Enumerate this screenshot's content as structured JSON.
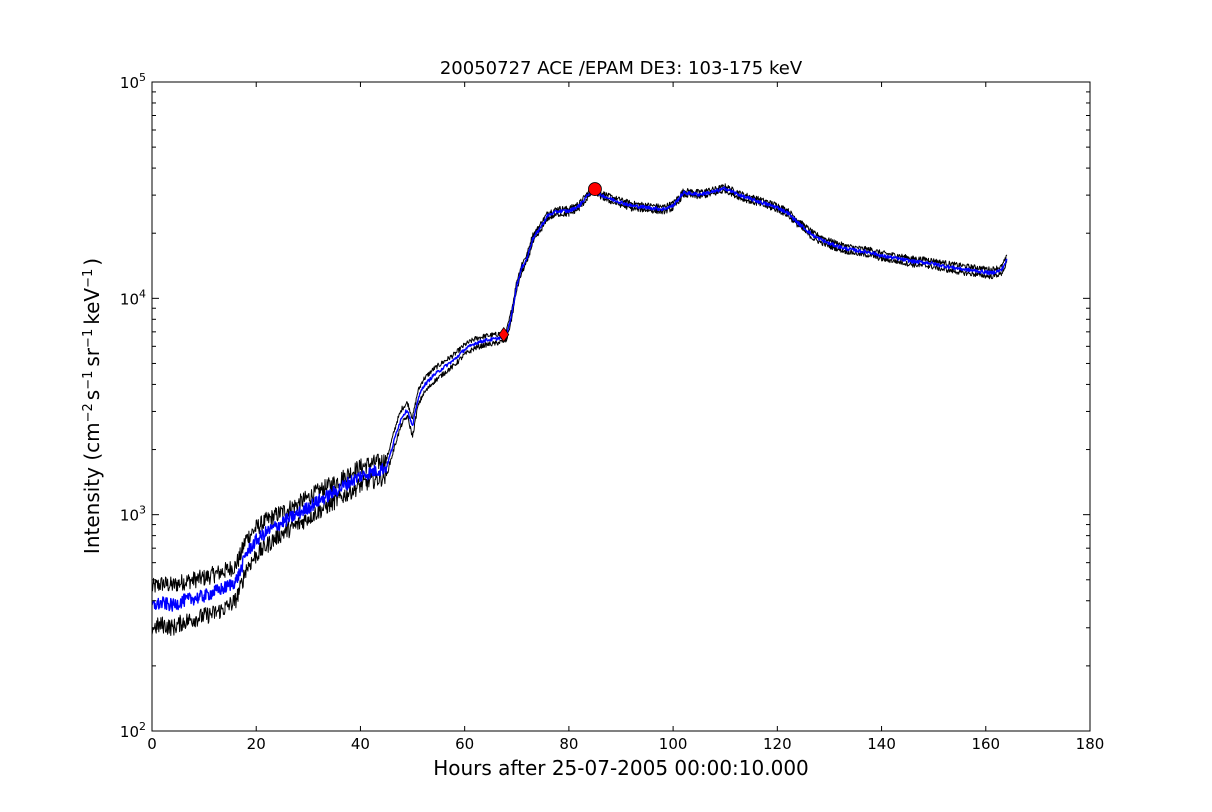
{
  "chart_data": {
    "type": "line",
    "title": "20050727 ACE /EPAM DE3: 103-175 keV",
    "xlabel": "Hours after 25-07-2005 00:00:10.000",
    "ylabel_main": "Intensity (cm",
    "ylabel_parts": [
      "Intensity (cm",
      "−2",
      "s",
      "−1",
      "sr",
      "−1",
      "keV",
      "−1",
      ")"
    ],
    "xlim": [
      0,
      180
    ],
    "ylim": [
      100,
      100000
    ],
    "yscale": "log",
    "xticks": [
      0,
      20,
      40,
      60,
      80,
      100,
      120,
      140,
      160,
      180
    ],
    "xtick_labels": [
      "0",
      "20",
      "40",
      "60",
      "80",
      "100",
      "120",
      "140",
      "160",
      "180"
    ],
    "yticks": [
      100,
      1000,
      10000,
      100000
    ],
    "ytick_labels": [
      {
        "base": "10",
        "exp": "2"
      },
      {
        "base": "10",
        "exp": "3"
      },
      {
        "base": "10",
        "exp": "4"
      },
      {
        "base": "10",
        "exp": "5"
      }
    ],
    "grid": false,
    "legend": "none",
    "series": [
      {
        "role": "upper-error-envelope",
        "color": "#000000",
        "x": [
          0,
          2,
          4,
          6,
          8,
          10,
          12,
          14,
          16,
          17,
          18,
          20,
          22,
          24,
          26,
          28,
          30,
          32,
          34,
          36,
          38,
          40,
          42,
          44,
          45,
          46,
          47,
          48,
          49,
          50,
          51,
          52,
          54,
          56,
          58,
          60,
          62,
          64,
          66,
          67,
          68,
          69,
          70,
          71,
          72,
          73,
          74,
          76,
          78,
          80,
          82,
          84,
          85,
          86,
          88,
          90,
          92,
          95,
          98,
          100,
          102,
          105,
          108,
          110,
          113,
          116,
          120,
          122,
          124,
          127,
          130,
          133,
          136,
          138,
          140,
          143,
          146,
          149,
          152,
          155,
          158,
          161,
          163,
          164
        ],
        "y": [
          460,
          480,
          470,
          490,
          500,
          510,
          530,
          550,
          580,
          650,
          770,
          870,
          940,
          1000,
          1060,
          1120,
          1200,
          1280,
          1360,
          1450,
          1560,
          1660,
          1720,
          1760,
          1800,
          2200,
          2700,
          3100,
          3300,
          2800,
          3700,
          4200,
          4700,
          5100,
          5500,
          6100,
          6500,
          6700,
          6800,
          6900,
          7000,
          8800,
          12000,
          14500,
          16000,
          19500,
          21000,
          25000,
          26000,
          26000,
          27500,
          31500,
          32500,
          31000,
          29500,
          28500,
          27500,
          27000,
          26500,
          27500,
          31500,
          31000,
          32000,
          33000,
          30500,
          29000,
          27000,
          25500,
          23000,
          20000,
          18500,
          17500,
          17000,
          16800,
          16200,
          15800,
          15300,
          15100,
          14600,
          14200,
          13900,
          13600,
          14000,
          15500
        ]
      },
      {
        "role": "lower-error-envelope",
        "color": "#000000",
        "x": [
          0,
          2,
          4,
          6,
          8,
          10,
          12,
          14,
          16,
          17,
          18,
          20,
          22,
          24,
          26,
          28,
          30,
          32,
          34,
          36,
          38,
          40,
          42,
          44,
          45,
          46,
          47,
          48,
          49,
          50,
          51,
          52,
          54,
          56,
          58,
          60,
          62,
          64,
          66,
          67,
          68,
          69,
          70,
          71,
          72,
          73,
          74,
          76,
          78,
          80,
          82,
          84,
          85,
          86,
          88,
          90,
          92,
          95,
          98,
          100,
          102,
          105,
          108,
          110,
          113,
          116,
          120,
          122,
          124,
          127,
          130,
          133,
          136,
          138,
          140,
          143,
          146,
          149,
          152,
          155,
          158,
          161,
          163,
          164
        ],
        "y": [
          300,
          310,
          300,
          320,
          330,
          340,
          350,
          370,
          400,
          460,
          560,
          650,
          720,
          790,
          850,
          900,
          970,
          1040,
          1110,
          1190,
          1280,
          1370,
          1430,
          1480,
          1520,
          1850,
          2250,
          2650,
          2850,
          2300,
          3150,
          3600,
          4100,
          4500,
          4900,
          5500,
          5900,
          6100,
          6200,
          6300,
          6400,
          8000,
          11000,
          13300,
          14800,
          18000,
          19500,
          23500,
          24500,
          24500,
          26000,
          30000,
          31000,
          29500,
          28000,
          27000,
          26000,
          25600,
          25100,
          26000,
          30000,
          29500,
          30500,
          31500,
          29000,
          27500,
          25600,
          24200,
          21700,
          18800,
          17400,
          16500,
          16000,
          15800,
          15200,
          14800,
          14300,
          14100,
          13600,
          13200,
          12900,
          12600,
          13000,
          14500
        ]
      },
      {
        "role": "intensity",
        "color": "#0000ff",
        "x": [
          0,
          2,
          4,
          6,
          8,
          10,
          12,
          14,
          16,
          17,
          18,
          20,
          22,
          24,
          26,
          28,
          30,
          32,
          34,
          36,
          38,
          40,
          42,
          44,
          45,
          46,
          47,
          48,
          49,
          50,
          51,
          52,
          54,
          56,
          58,
          60,
          62,
          64,
          66,
          67,
          68,
          69,
          70,
          71,
          72,
          73,
          74,
          76,
          78,
          80,
          82,
          84,
          85,
          86,
          88,
          90,
          92,
          95,
          98,
          100,
          102,
          105,
          108,
          110,
          113,
          116,
          120,
          122,
          124,
          127,
          130,
          133,
          136,
          138,
          140,
          143,
          146,
          149,
          152,
          155,
          158,
          161,
          163,
          164
        ],
        "y": [
          380,
          390,
          380,
          400,
          410,
          420,
          440,
          460,
          490,
          550,
          660,
          760,
          830,
          890,
          950,
          1010,
          1080,
          1160,
          1230,
          1320,
          1420,
          1510,
          1570,
          1620,
          1660,
          2000,
          2450,
          2850,
          3050,
          2550,
          3400,
          3900,
          4400,
          4800,
          5200,
          5800,
          6200,
          6400,
          6500,
          6600,
          6700,
          8400,
          11500,
          13900,
          15400,
          18700,
          20300,
          24200,
          25300,
          25300,
          26800,
          30800,
          31800,
          30200,
          28800,
          27800,
          26800,
          26300,
          25800,
          26800,
          30800,
          30200,
          31200,
          32200,
          29800,
          28200,
          26300,
          24800,
          22300,
          19400,
          17900,
          17000,
          16500,
          16300,
          15700,
          15300,
          14800,
          14600,
          14100,
          13700,
          13400,
          13100,
          13500,
          15000
        ]
      }
    ],
    "markers": [
      {
        "shape": "diamond",
        "x": 67.5,
        "y": 6800,
        "color": "#ff0000"
      },
      {
        "shape": "circle",
        "x": 85,
        "y": 32000,
        "color": "#ff0000"
      }
    ]
  }
}
